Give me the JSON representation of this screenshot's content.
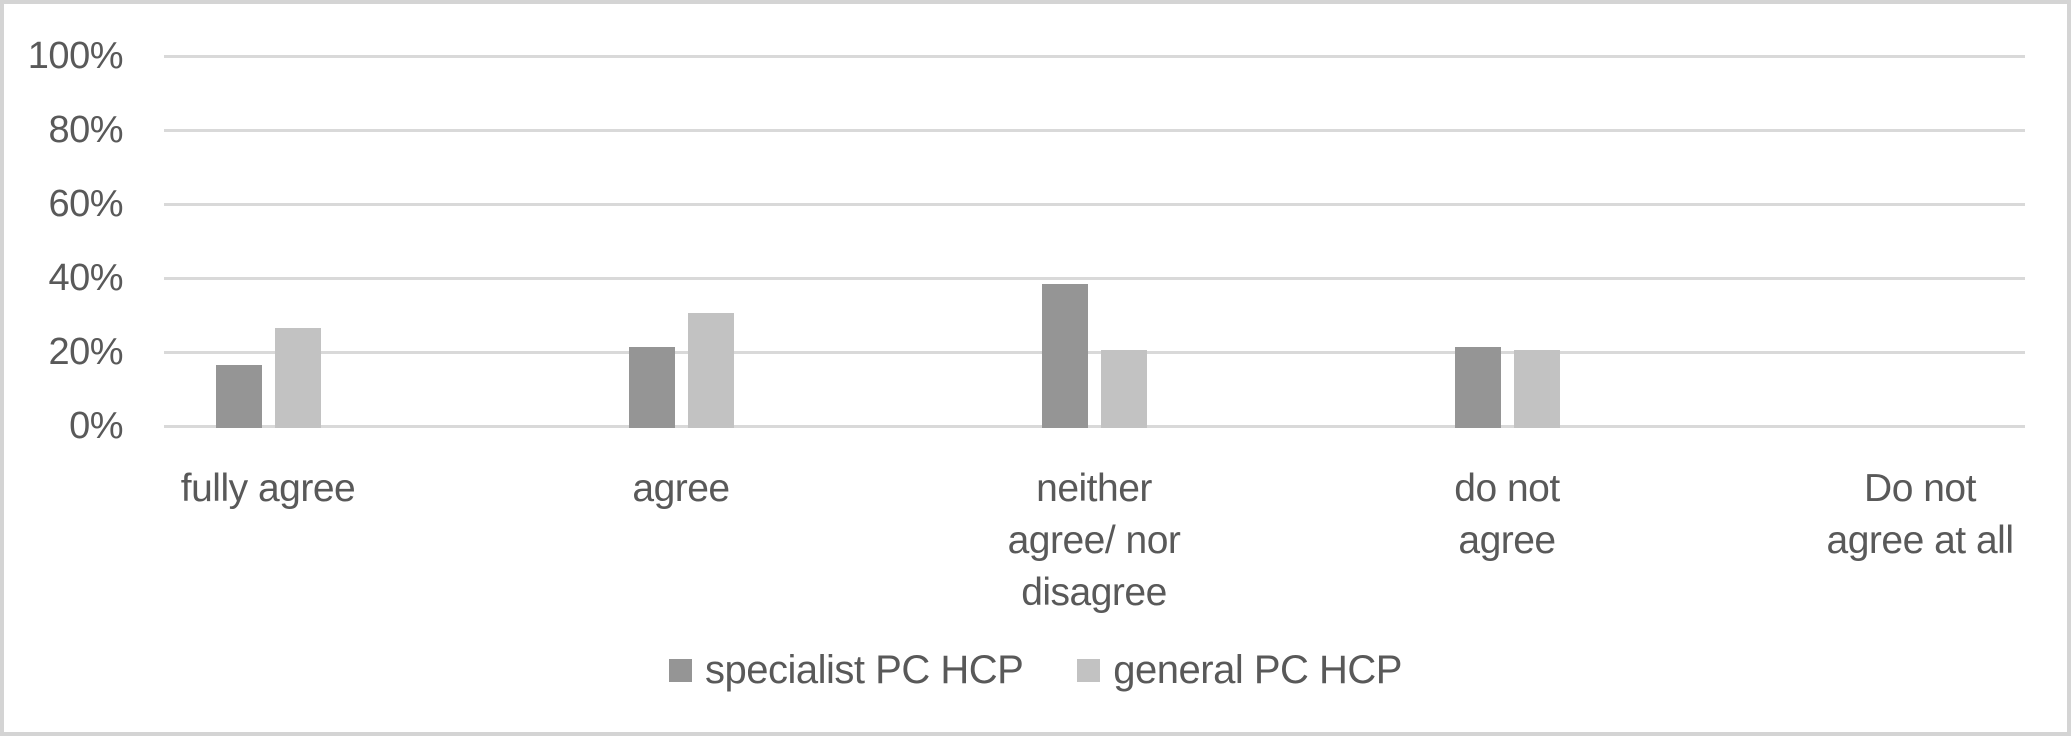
{
  "chart_data": {
    "type": "bar",
    "title": "",
    "categories": [
      "fully agree",
      "agree",
      "neither agree/ nor disagree",
      "do not agree",
      "Do not agree at all"
    ],
    "category_lines": [
      [
        "fully agree"
      ],
      [
        "agree"
      ],
      [
        "neither",
        "agree/ nor",
        "disagree"
      ],
      [
        "do not",
        "agree"
      ],
      [
        "Do not",
        "agree at all"
      ]
    ],
    "series": [
      {
        "name": "specialist PC HCP",
        "values": [
          17,
          22,
          39,
          22,
          0
        ],
        "color": "#959595"
      },
      {
        "name": "general PC HCP",
        "values": [
          27,
          31,
          21,
          21,
          0
        ],
        "color": "#c2c2c2"
      }
    ],
    "unit": "%",
    "yticks": [
      {
        "value": 0,
        "label": "0%"
      },
      {
        "value": 20,
        "label": "20%"
      },
      {
        "value": 40,
        "label": "40%"
      },
      {
        "value": 60,
        "label": "60%"
      },
      {
        "value": 80,
        "label": "80%"
      },
      {
        "value": 100,
        "label": "100%"
      }
    ],
    "ylim": [
      0,
      100
    ],
    "grid": true,
    "legend_position": "bottom"
  },
  "colors": {
    "text": "#595959",
    "gridline": "#d9d9d9",
    "series_specialist": "#959595",
    "series_general": "#c2c2c2",
    "frame_border": "#d4d4d4",
    "background": "#ffffff"
  }
}
